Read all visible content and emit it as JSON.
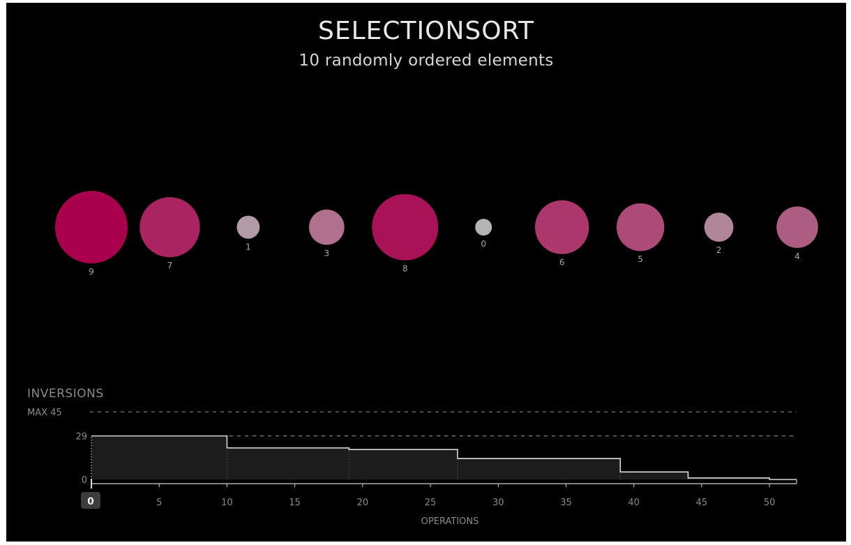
{
  "header": {
    "title": "SELECTIONSORT",
    "subtitle": "10 randomly ordered elements"
  },
  "elements": [
    {
      "label": "9",
      "value": 9
    },
    {
      "label": "7",
      "value": 7
    },
    {
      "label": "1",
      "value": 1
    },
    {
      "label": "3",
      "value": 3
    },
    {
      "label": "8",
      "value": 8
    },
    {
      "label": "0",
      "value": 0
    },
    {
      "label": "6",
      "value": 6
    },
    {
      "label": "5",
      "value": 5
    },
    {
      "label": "2",
      "value": 2
    },
    {
      "label": "4",
      "value": 4
    }
  ],
  "colors": {
    "background": "#000000",
    "circle_high": "#a8004c",
    "circle_low": "#b4b4b4",
    "step_fill": "#1c1c1c",
    "step_line": "#d8d8d8",
    "axis_text": "#8a8a8a",
    "current_op_badge": "#3c3c3c"
  },
  "chart_data": {
    "type": "area",
    "ylabel": "INVERSIONS",
    "xlabel": "OPERATIONS",
    "max_label": "MAX 45",
    "max_value": 45,
    "current_value_label": "29",
    "zero_label": "0",
    "current_operation_label": "0",
    "xlim": [
      0,
      52
    ],
    "ylim": [
      0,
      45
    ],
    "x_ticks": [
      0,
      5,
      10,
      15,
      20,
      25,
      30,
      35,
      40,
      45,
      50
    ],
    "x_tick_labels": [
      "0",
      "5",
      "10",
      "15",
      "20",
      "25",
      "30",
      "35",
      "40",
      "45",
      "50"
    ],
    "steps": [
      {
        "x_start": 0,
        "x_end": 10,
        "y": 29
      },
      {
        "x_start": 10,
        "x_end": 19,
        "y": 21
      },
      {
        "x_start": 19,
        "x_end": 27,
        "y": 20
      },
      {
        "x_start": 27,
        "x_end": 39,
        "y": 14
      },
      {
        "x_start": 39,
        "x_end": 44,
        "y": 5
      },
      {
        "x_start": 44,
        "x_end": 50,
        "y": 1
      },
      {
        "x_start": 50,
        "x_end": 52,
        "y": 0
      }
    ],
    "step_markers": [
      10,
      19,
      27,
      39,
      44,
      50
    ],
    "grid": "dashed-horizontal"
  }
}
